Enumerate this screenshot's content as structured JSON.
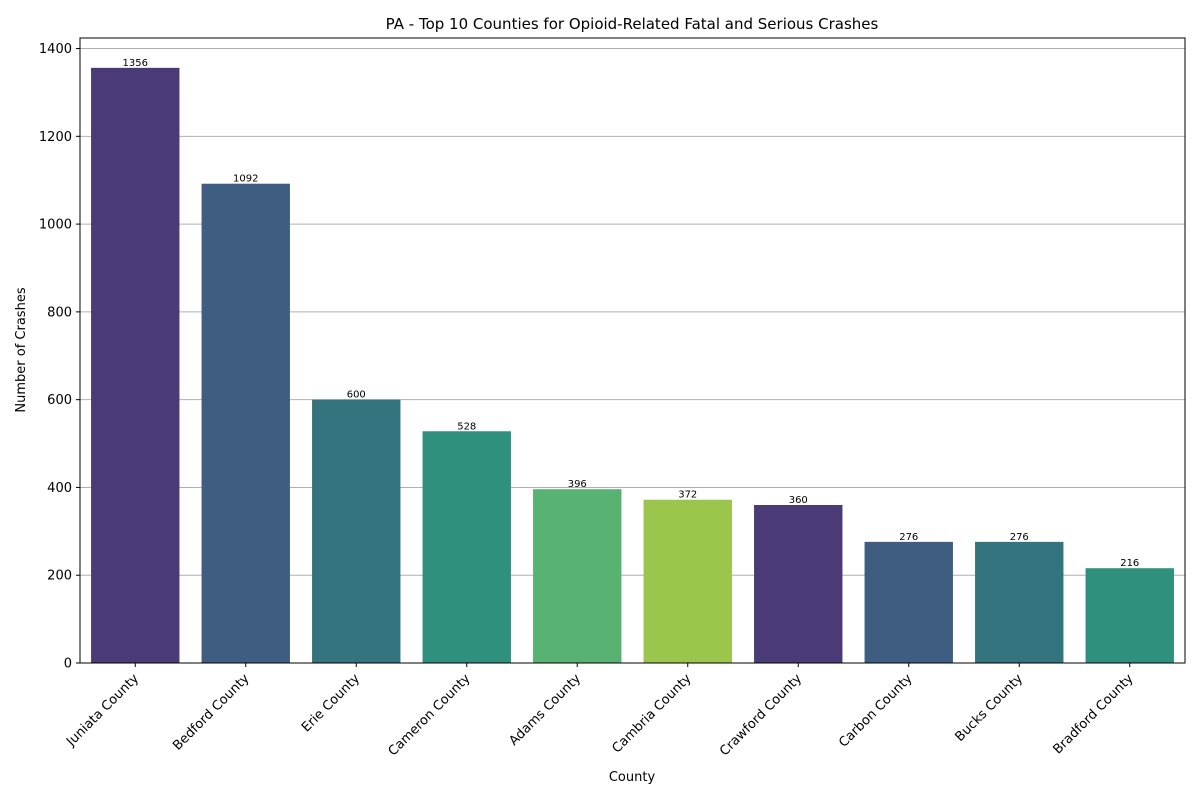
{
  "chart_data": {
    "type": "bar",
    "title": "PA - Top 10 Counties for Opioid-Related Fatal and Serious Crashes",
    "xlabel": "County",
    "ylabel": "Number of Crashes",
    "categories": [
      "Juniata County",
      "Bedford County",
      "Erie County",
      "Cameron County",
      "Adams County",
      "Cambria County",
      "Crawford County",
      "Carbon County",
      "Bucks County",
      "Bradford County"
    ],
    "values": [
      1356,
      1092,
      600,
      528,
      396,
      372,
      360,
      276,
      276,
      216
    ],
    "data_labels": [
      "1356",
      "1092",
      "600",
      "528",
      "396",
      "372",
      "360",
      "276",
      "276",
      "216"
    ],
    "ylim": [
      0,
      1424
    ],
    "yticks": [
      0,
      200,
      400,
      600,
      800,
      1000,
      1200,
      1400
    ],
    "ytick_labels": [
      "0",
      "200",
      "400",
      "600",
      "800",
      "1000",
      "1200",
      "1400"
    ],
    "grid": "y-major",
    "legend": "none",
    "colors": [
      "#4a3a75",
      "#3f5c81",
      "#34747e",
      "#2e907d",
      "#58b372",
      "#9bc64e",
      "#4a3a75",
      "#3f5c81",
      "#34747e",
      "#2e907d"
    ]
  }
}
